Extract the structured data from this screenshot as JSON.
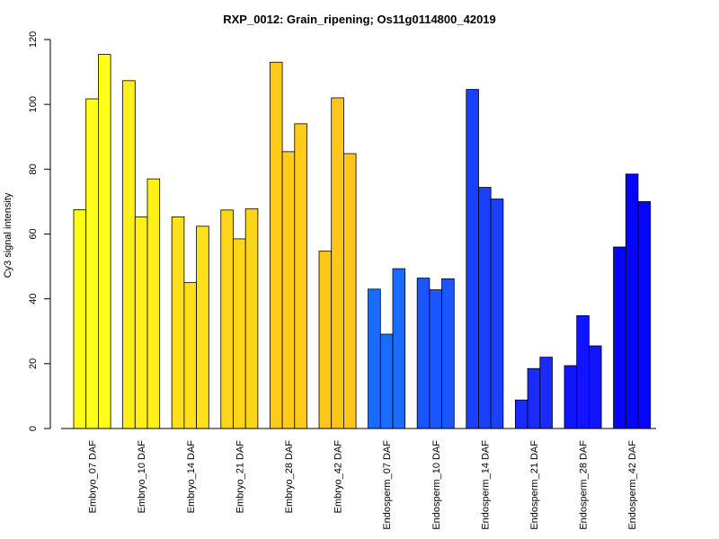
{
  "chart_data": {
    "type": "bar",
    "title": "RXP_0012: Grain_ripening; Os11g0114800_42019",
    "xlabel": "",
    "ylabel": "Cy3 signal intensity",
    "ylim": [
      0,
      120
    ],
    "yticks": [
      0,
      20,
      40,
      60,
      80,
      100,
      120
    ],
    "grid": false,
    "legend": "none",
    "categories": [
      "Embryo_07 DAF",
      "Embryo_10 DAF",
      "Embryo_14 DAF",
      "Embryo_21 DAF",
      "Embryo_28 DAF",
      "Embryo_42 DAF",
      "Endosperm_07 DAF",
      "Endosperm_10 DAF",
      "Endosperm_14 DAF",
      "Endosperm_21 DAF",
      "Endosperm_28 DAF",
      "Endosperm_42 DAF"
    ],
    "colors": [
      "#ffff1a",
      "#fff01a",
      "#ffe01a",
      "#ffd51a",
      "#ffcc1a",
      "#ffc61a",
      "#1a6bff",
      "#1a55ff",
      "#1a40ff",
      "#1a2bff",
      "#0f15ff",
      "#0505ff"
    ],
    "replicates": [
      [
        67.5,
        101.7,
        115.4
      ],
      [
        107.3,
        65.3,
        77.0
      ],
      [
        65.3,
        45.0,
        62.4
      ],
      [
        67.4,
        58.5,
        67.8
      ],
      [
        113.0,
        85.4,
        94.0
      ],
      [
        54.7,
        102.0,
        84.8
      ],
      [
        43.0,
        29.1,
        49.3
      ],
      [
        46.4,
        42.8,
        46.2
      ],
      [
        104.6,
        74.4,
        70.8
      ],
      [
        8.8,
        18.5,
        22.0
      ],
      [
        19.4,
        34.8,
        25.5
      ],
      [
        56.0,
        78.5,
        70.0
      ]
    ]
  }
}
